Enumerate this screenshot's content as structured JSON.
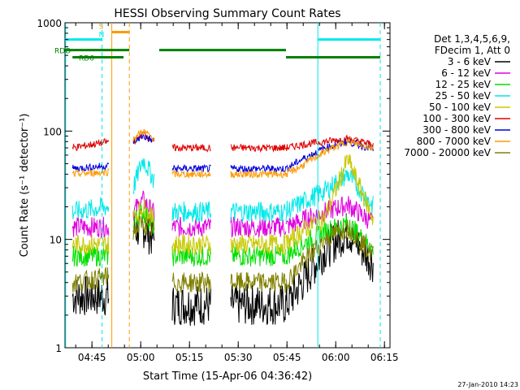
{
  "chart_data": {
    "type": "line",
    "title": "HESSI Observing Summary Count Rates",
    "xlabel": "Start Time (15-Apr-06 04:36:42)",
    "ylabel": "Count Rate (s⁻¹ detector⁻¹)",
    "y_scale": "log",
    "ylim": [
      1,
      1000
    ],
    "xlim_minutes_after_0436_42": [
      0,
      100
    ],
    "x_ticks": [
      {
        "label": "04:45",
        "t": 8.3
      },
      {
        "label": "05:00",
        "t": 23.3
      },
      {
        "label": "05:15",
        "t": 38.3
      },
      {
        "label": "05:30",
        "t": 53.3
      },
      {
        "label": "05:45",
        "t": 68.3
      },
      {
        "label": "06:00",
        "t": 83.3
      },
      {
        "label": "06:15",
        "t": 98.3
      }
    ],
    "y_ticks": [
      {
        "label": "1",
        "v": 1
      },
      {
        "label": "10",
        "v": 10
      },
      {
        "label": "100",
        "v": 100
      },
      {
        "label": "1000",
        "v": 1000
      }
    ],
    "legend": {
      "placement": "right",
      "header": [
        "Det 1,3,4,5,6,9,",
        "FDecim 1, Att 0"
      ],
      "entries": [
        {
          "label": "3 - 6 keV",
          "color": "#000000"
        },
        {
          "label": "6 - 12 keV",
          "color": "#e000e0"
        },
        {
          "label": "12 - 25 keV",
          "color": "#00e000"
        },
        {
          "label": "25 - 50 keV",
          "color": "#00e8e8"
        },
        {
          "label": "50 - 100 keV",
          "color": "#c8c800"
        },
        {
          "label": "100 - 300 keV",
          "color": "#e00000"
        },
        {
          "label": "300 - 800 keV",
          "color": "#0000e0"
        },
        {
          "label": "800 - 7000 keV",
          "color": "#ff9900"
        },
        {
          "label": "7000 - 20000 keV",
          "color": "#808000"
        }
      ]
    },
    "segments": [
      [
        2.3,
        13.5
      ],
      [
        21.0,
        27.5
      ],
      [
        33.0,
        45.0
      ],
      [
        51.0,
        68.0
      ],
      [
        68.0,
        95.0
      ]
    ],
    "series": [
      {
        "name": "3 - 6 keV",
        "color": "#000000",
        "values": [
          [
            2.3,
            3.0
          ],
          [
            13.5,
            3.0
          ],
          [
            21.0,
            12.0
          ],
          [
            24.0,
            13.0
          ],
          [
            27.5,
            10.0
          ],
          [
            33.0,
            2.5
          ],
          [
            45.0,
            2.5
          ],
          [
            51.0,
            2.5
          ],
          [
            68.0,
            2.5
          ],
          [
            73.0,
            4.0
          ],
          [
            80.0,
            8.0
          ],
          [
            87.0,
            12.0
          ],
          [
            95.0,
            6.0
          ]
        ]
      },
      {
        "name": "6 - 12 keV",
        "color": "#e000e0",
        "values": [
          [
            2.3,
            13.0
          ],
          [
            13.5,
            13.0
          ],
          [
            21.0,
            18.0
          ],
          [
            24.0,
            23.0
          ],
          [
            27.5,
            17.0
          ],
          [
            33.0,
            13.0
          ],
          [
            45.0,
            13.0
          ],
          [
            51.0,
            13.0
          ],
          [
            68.0,
            13.0
          ],
          [
            73.0,
            15.0
          ],
          [
            80.0,
            18.0
          ],
          [
            87.0,
            21.0
          ],
          [
            95.0,
            14.0
          ]
        ]
      },
      {
        "name": "12 - 25 keV",
        "color": "#00e000",
        "values": [
          [
            2.3,
            7.0
          ],
          [
            13.5,
            7.0
          ],
          [
            21.0,
            15.0
          ],
          [
            24.0,
            18.0
          ],
          [
            27.5,
            13.0
          ],
          [
            33.0,
            7.0
          ],
          [
            45.0,
            7.0
          ],
          [
            51.0,
            7.0
          ],
          [
            68.0,
            7.0
          ],
          [
            73.0,
            9.0
          ],
          [
            80.0,
            12.0
          ],
          [
            87.0,
            14.0
          ],
          [
            95.0,
            8.0
          ]
        ]
      },
      {
        "name": "25 - 50 keV",
        "color": "#00e8e8",
        "values": [
          [
            2.3,
            18.0
          ],
          [
            13.5,
            20.0
          ],
          [
            21.0,
            30.0
          ],
          [
            24.0,
            55.0
          ],
          [
            27.5,
            35.0
          ],
          [
            33.0,
            18.0
          ],
          [
            45.0,
            18.0
          ],
          [
            51.0,
            18.0
          ],
          [
            68.0,
            18.0
          ],
          [
            73.0,
            22.0
          ],
          [
            80.0,
            28.0
          ],
          [
            87.0,
            40.0
          ],
          [
            95.0,
            20.0
          ]
        ]
      },
      {
        "name": "50 - 100 keV",
        "color": "#c8c800",
        "values": [
          [
            2.3,
            9.0
          ],
          [
            13.5,
            9.0
          ],
          [
            21.0,
            16.0
          ],
          [
            24.0,
            20.0
          ],
          [
            27.5,
            15.0
          ],
          [
            33.0,
            9.0
          ],
          [
            45.0,
            9.0
          ],
          [
            51.0,
            9.0
          ],
          [
            68.0,
            9.0
          ],
          [
            73.0,
            12.0
          ],
          [
            80.0,
            16.0
          ],
          [
            87.0,
            55.0
          ],
          [
            95.0,
            15.0
          ]
        ]
      },
      {
        "name": "100 - 300 keV",
        "color": "#e00000",
        "values": [
          [
            2.3,
            70.0
          ],
          [
            13.5,
            80.0
          ],
          [
            21.0,
            80.0
          ],
          [
            24.0,
            95.0
          ],
          [
            27.5,
            80.0
          ],
          [
            33.0,
            70.0
          ],
          [
            45.0,
            70.0
          ],
          [
            51.0,
            70.0
          ],
          [
            68.0,
            70.0
          ],
          [
            73.0,
            75.0
          ],
          [
            80.0,
            80.0
          ],
          [
            87.0,
            85.0
          ],
          [
            95.0,
            75.0
          ]
        ]
      },
      {
        "name": "300 - 800 keV",
        "color": "#0000e0",
        "values": [
          [
            2.3,
            45.0
          ],
          [
            13.5,
            48.0
          ],
          [
            21.0,
            80.0
          ],
          [
            24.0,
            90.0
          ],
          [
            27.5,
            80.0
          ],
          [
            33.0,
            45.0
          ],
          [
            45.0,
            45.0
          ],
          [
            51.0,
            45.0
          ],
          [
            68.0,
            45.0
          ],
          [
            73.0,
            55.0
          ],
          [
            80.0,
            70.0
          ],
          [
            87.0,
            80.0
          ],
          [
            95.0,
            68.0
          ]
        ]
      },
      {
        "name": "800 - 7000 keV",
        "color": "#ff9900",
        "values": [
          [
            2.3,
            40.0
          ],
          [
            13.5,
            42.0
          ],
          [
            21.0,
            85.0
          ],
          [
            24.0,
            100.0
          ],
          [
            27.5,
            85.0
          ],
          [
            33.0,
            40.0
          ],
          [
            45.0,
            40.0
          ],
          [
            51.0,
            40.0
          ],
          [
            68.0,
            40.0
          ],
          [
            73.0,
            48.0
          ],
          [
            80.0,
            65.0
          ],
          [
            87.0,
            80.0
          ],
          [
            95.0,
            70.0
          ]
        ]
      },
      {
        "name": "7000 - 20000 keV",
        "color": "#808000",
        "values": [
          [
            2.3,
            4.0
          ],
          [
            13.5,
            4.5
          ],
          [
            21.0,
            12.0
          ],
          [
            24.0,
            14.0
          ],
          [
            27.5,
            12.0
          ],
          [
            33.0,
            4.0
          ],
          [
            45.0,
            4.0
          ],
          [
            51.0,
            4.0
          ],
          [
            68.0,
            4.0
          ],
          [
            73.0,
            6.0
          ],
          [
            80.0,
            10.0
          ],
          [
            87.0,
            13.0
          ],
          [
            95.0,
            7.0
          ]
        ]
      }
    ],
    "flag_bars": [
      {
        "label": "",
        "color": "#00e8e8",
        "y_value": 700,
        "ranges": [
          [
            0,
            11.4
          ],
          [
            77.8,
            97.0
          ]
        ]
      },
      {
        "label": "RDO",
        "color": "#008000",
        "y_value": 560,
        "ranges": [
          [
            0,
            19.8
          ],
          [
            29.0,
            68.0
          ]
        ]
      },
      {
        "label": "RD6",
        "color": "#008000",
        "y_value": 480,
        "ranges": [
          [
            2.3,
            18.0
          ],
          [
            68.0,
            97.0
          ]
        ]
      },
      {
        "label": "S",
        "color": "#ff9900",
        "y_value": 820,
        "ranges": [
          [
            14.4,
            19.8
          ]
        ]
      },
      {
        "label": "N",
        "color": "#00e8e8",
        "y_value": 700,
        "ranges": []
      }
    ],
    "vlines": [
      {
        "t": 0.2,
        "color": "#00e8e8",
        "style": "solid"
      },
      {
        "t": 11.4,
        "color": "#00e8e8",
        "style": "dashed"
      },
      {
        "t": 14.4,
        "color": "#ff9900",
        "style": "solid"
      },
      {
        "t": 19.8,
        "color": "#ff9900",
        "style": "dashed"
      },
      {
        "t": 77.8,
        "color": "#00e8e8",
        "style": "solid"
      },
      {
        "t": 97.0,
        "color": "#00e8e8",
        "style": "dashed"
      }
    ],
    "footer_date": "27-Jan-2010 14:23"
  }
}
